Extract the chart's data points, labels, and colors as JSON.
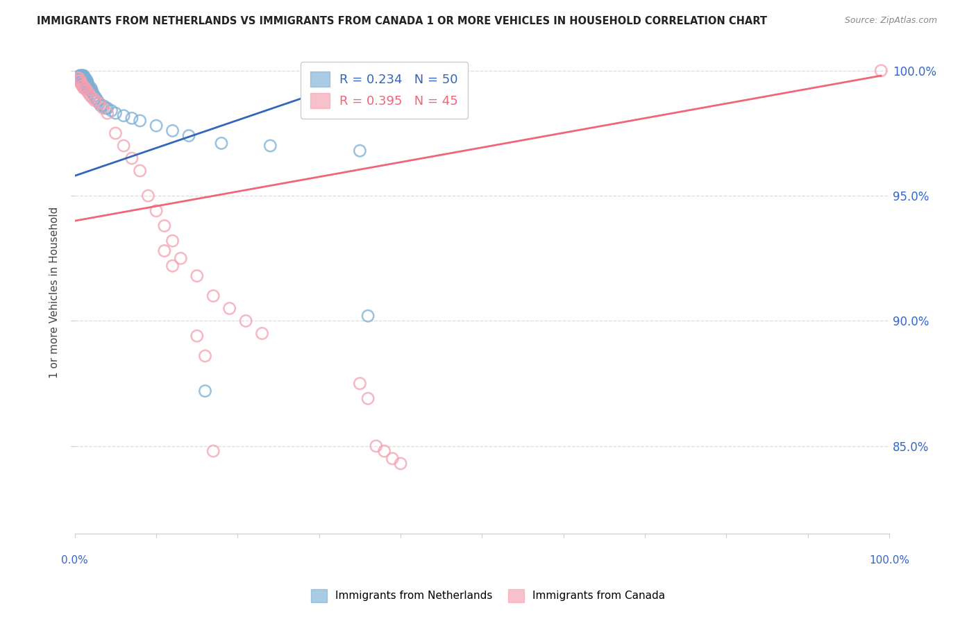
{
  "title": "IMMIGRANTS FROM NETHERLANDS VS IMMIGRANTS FROM CANADA 1 OR MORE VEHICLES IN HOUSEHOLD CORRELATION CHART",
  "source": "Source: ZipAtlas.com",
  "ylabel": "1 or more Vehicles in Household",
  "ytick_labels": [
    "85.0%",
    "90.0%",
    "95.0%",
    "100.0%"
  ],
  "ytick_values": [
    0.85,
    0.9,
    0.95,
    1.0
  ],
  "xlim": [
    0.0,
    1.0
  ],
  "ylim": [
    0.815,
    1.008
  ],
  "legend_blue_r": "R = 0.234",
  "legend_blue_n": "N = 50",
  "legend_pink_r": "R = 0.395",
  "legend_pink_n": "N = 45",
  "blue_color": "#7BAFD4",
  "pink_color": "#F4A0B0",
  "blue_line_color": "#3366BB",
  "pink_line_color": "#EE6677",
  "netherlands_x": [
    0.004,
    0.005,
    0.006,
    0.007,
    0.007,
    0.008,
    0.008,
    0.009,
    0.009,
    0.01,
    0.01,
    0.011,
    0.011,
    0.012,
    0.012,
    0.013,
    0.013,
    0.014,
    0.014,
    0.015,
    0.015,
    0.016,
    0.016,
    0.017,
    0.018,
    0.019,
    0.02,
    0.021,
    0.022,
    0.024,
    0.026,
    0.028,
    0.03,
    0.032,
    0.035,
    0.038,
    0.04,
    0.045,
    0.05,
    0.06,
    0.07,
    0.08,
    0.1,
    0.12,
    0.14,
    0.16,
    0.18,
    0.24,
    0.35,
    0.36
  ],
  "netherlands_y": [
    0.997,
    0.997,
    0.998,
    0.998,
    0.997,
    0.998,
    0.997,
    0.998,
    0.997,
    0.998,
    0.997,
    0.998,
    0.996,
    0.997,
    0.996,
    0.997,
    0.995,
    0.996,
    0.994,
    0.996,
    0.994,
    0.995,
    0.993,
    0.994,
    0.993,
    0.992,
    0.993,
    0.992,
    0.991,
    0.99,
    0.989,
    0.988,
    0.987,
    0.986,
    0.986,
    0.985,
    0.985,
    0.984,
    0.983,
    0.982,
    0.981,
    0.98,
    0.978,
    0.976,
    0.974,
    0.872,
    0.971,
    0.97,
    0.968,
    0.902
  ],
  "canada_x": [
    0.003,
    0.004,
    0.005,
    0.006,
    0.007,
    0.008,
    0.009,
    0.01,
    0.011,
    0.012,
    0.013,
    0.015,
    0.017,
    0.019,
    0.022,
    0.025,
    0.03,
    0.035,
    0.04,
    0.05,
    0.06,
    0.07,
    0.08,
    0.09,
    0.1,
    0.11,
    0.12,
    0.13,
    0.15,
    0.17,
    0.19,
    0.21,
    0.23,
    0.11,
    0.12,
    0.35,
    0.36,
    0.37,
    0.38,
    0.39,
    0.4,
    0.15,
    0.16,
    0.17,
    0.99
  ],
  "canada_y": [
    0.996,
    0.997,
    0.997,
    0.996,
    0.996,
    0.995,
    0.994,
    0.994,
    0.993,
    0.993,
    0.993,
    0.992,
    0.991,
    0.99,
    0.989,
    0.988,
    0.987,
    0.985,
    0.983,
    0.975,
    0.97,
    0.965,
    0.96,
    0.95,
    0.944,
    0.938,
    0.932,
    0.925,
    0.918,
    0.91,
    0.905,
    0.9,
    0.895,
    0.928,
    0.922,
    0.875,
    0.869,
    0.85,
    0.848,
    0.845,
    0.843,
    0.894,
    0.886,
    0.848,
    1.0
  ],
  "nl_trend_x": [
    0.0,
    0.36
  ],
  "nl_trend_y": [
    0.958,
    0.998
  ],
  "ca_trend_x": [
    0.0,
    0.99
  ],
  "ca_trend_y": [
    0.94,
    0.998
  ]
}
